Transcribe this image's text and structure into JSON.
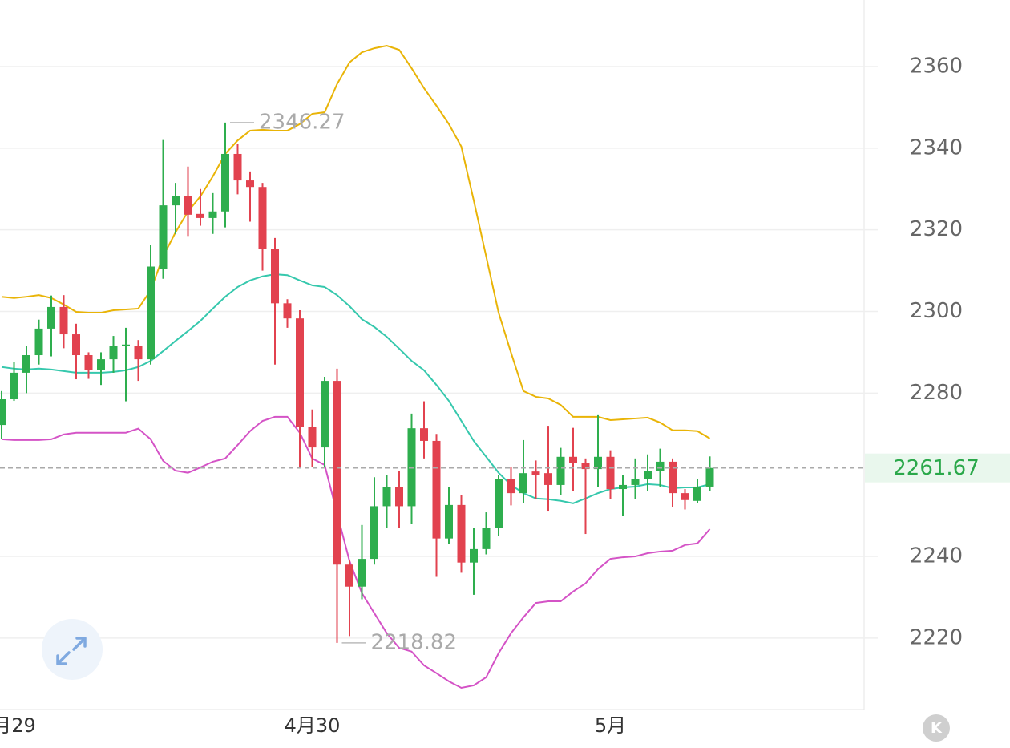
{
  "chart_data": {
    "type": "candlestick",
    "categories": [
      null,
      "月29",
      null,
      null,
      null,
      null,
      null,
      null,
      null,
      null,
      null,
      null,
      null,
      null,
      null,
      null,
      null,
      null,
      null,
      null,
      null,
      null,
      null,
      null,
      null,
      "4月30",
      null,
      null,
      null,
      null,
      null,
      null,
      null,
      null,
      null,
      null,
      null,
      null,
      null,
      null,
      null,
      null,
      null,
      null,
      null,
      null,
      null,
      null,
      null,
      "5月",
      null,
      null,
      null,
      null,
      null,
      null,
      null,
      null
    ],
    "open": [
      2272.2,
      2278.5,
      2285,
      2289.3,
      2295.8,
      2301.1,
      2294.4,
      2289.3,
      2285.6,
      2288.3,
      2291.5,
      2291.5,
      2288.3,
      2310.5,
      2326,
      2328.2,
      2323.9,
      2322.9,
      2324.5,
      2338.6,
      2332.1,
      2330.5,
      2315.4,
      2302,
      2298.3,
      2271.8,
      2266.7,
      2283,
      2238,
      2232.6,
      2239.4,
      2252.3,
      2257,
      2252.3,
      2271.4,
      2268.3,
      2244.4,
      2252.6,
      2238.5,
      2241.8,
      2247,
      2259,
      2255.5,
      2260.8,
      2260.4,
      2257.5,
      2264.4,
      2262.8,
      2261.4,
      2264.4,
      2256.5,
      2257.5,
      2258.9,
      2260.9,
      2263.2,
      2255.5,
      2253.6,
      2257.1
    ],
    "high": [
      2280.5,
      2287.6,
      2291.5,
      2298,
      2303.9,
      2304,
      2297,
      2290,
      2290,
      2294,
      2296,
      2293,
      2316.4,
      2342,
      2331.5,
      2335.5,
      2330,
      2329,
      2346.27,
      2341,
      2334.3,
      2331.5,
      2318,
      2303,
      2300.3,
      2276,
      2284,
      2286,
      2239,
      2247.7,
      2259.4,
      2260,
      2261,
      2275,
      2278,
      2270,
      2257,
      2255,
      2247,
      2250.8,
      2260,
      2262,
      2268.5,
      2263.5,
      2272,
      2266.6,
      2271.5,
      2264,
      2274.6,
      2266,
      2260,
      2264,
      2265,
      2266.4,
      2264,
      2256.5,
      2259,
      2264.5
    ],
    "low": [
      2268.7,
      2278.1,
      2280,
      2287,
      2289,
      2291,
      2283.4,
      2283.5,
      2282,
      2285,
      2278,
      2283,
      2287,
      2308,
      2319,
      2318.5,
      2321,
      2319,
      2320.6,
      2328.7,
      2322,
      2310,
      2287,
      2296,
      2262,
      2262,
      2262,
      2218.82,
      2220.5,
      2229.5,
      2238,
      2247,
      2247,
      2248,
      2264,
      2235,
      2243,
      2236,
      2230.6,
      2240.5,
      2245,
      2252.5,
      2253,
      2254,
      2251,
      2255,
      2256,
      2245.5,
      2257,
      2254,
      2250,
      2254,
      2256,
      2257,
      2252,
      2251.5,
      2253,
      2256
    ],
    "close": [
      2278.5,
      2285,
      2289.3,
      2295.8,
      2301.1,
      2294.4,
      2289.3,
      2285.6,
      2288.3,
      2291.5,
      2291.9,
      2288.3,
      2311,
      2326,
      2328.2,
      2323.7,
      2322.9,
      2324.5,
      2338.6,
      2332.1,
      2330.5,
      2315.4,
      2302,
      2298.3,
      2271.8,
      2266.7,
      2283,
      2238,
      2232.6,
      2239.4,
      2252.3,
      2257,
      2252.3,
      2271.4,
      2268.3,
      2244.4,
      2252.6,
      2238.5,
      2241.8,
      2247,
      2259,
      2255.5,
      2260.4,
      2260,
      2257.5,
      2264.4,
      2262.8,
      2261.4,
      2264.4,
      2256.5,
      2257.5,
      2258.9,
      2260.9,
      2263.2,
      2255.5,
      2253.8,
      2257.1,
      2261.67
    ],
    "up_color": "#2eae4e",
    "down_color": "#e2424f",
    "bands": [
      {
        "color": "#e9b407",
        "values": [
          2303.6,
          2303.3,
          2303.6,
          2304.0,
          2303.3,
          2301.7,
          2299.9,
          2299.7,
          2299.7,
          2300.3,
          2300.5,
          2300.7,
          2305.2,
          2313.5,
          2319.4,
          2324.5,
          2328.2,
          2333.1,
          2338.6,
          2341.9,
          2344.3,
          2344.5,
          2344.3,
          2344.3,
          2345.9,
          2348.4,
          2348.8,
          2355.7,
          2361.0,
          2363.5,
          2364.5,
          2365.1,
          2364.1,
          2359.6,
          2354.7,
          2350.4,
          2345.9,
          2340.4,
          2327.2,
          2313.5,
          2299.7,
          2289.9,
          2280.5,
          2279.1,
          2278.7,
          2277.1,
          2274.2,
          2274.2,
          2274.2,
          2273.4,
          2273.6,
          2273.8,
          2274.0,
          2272.8,
          2270.9,
          2270.9,
          2270.7,
          2268.9
        ]
      },
      {
        "color": "#36c8ad",
        "values": [
          2286.4,
          2286.0,
          2285.8,
          2286.0,
          2285.8,
          2285.4,
          2285.0,
          2285.0,
          2285.0,
          2285.2,
          2285.6,
          2286.4,
          2287.9,
          2290.3,
          2292.8,
          2295.2,
          2297.7,
          2300.7,
          2303.6,
          2306.0,
          2307.6,
          2308.6,
          2309.1,
          2308.9,
          2307.6,
          2306.4,
          2306.0,
          2304.0,
          2301.3,
          2298.1,
          2296.2,
          2293.8,
          2290.9,
          2287.9,
          2285.6,
          2282.0,
          2278.1,
          2273.2,
          2268.3,
          2264.4,
          2260.5,
          2257.5,
          2255.5,
          2254.2,
          2254.0,
          2253.6,
          2253.0,
          2254.2,
          2255.5,
          2256.5,
          2256.9,
          2257.1,
          2257.7,
          2257.5,
          2256.7,
          2256.9,
          2256.9,
          2257.7
        ]
      },
      {
        "color": "#d453c6",
        "values": [
          2268.7,
          2268.5,
          2268.5,
          2268.5,
          2268.7,
          2269.9,
          2270.3,
          2270.3,
          2270.3,
          2270.3,
          2270.3,
          2271.3,
          2268.7,
          2263.4,
          2261.0,
          2260.5,
          2261.8,
          2263.2,
          2264.0,
          2267.3,
          2270.7,
          2273.2,
          2274.2,
          2274.2,
          2270.3,
          2264.0,
          2262.4,
          2250.6,
          2238.9,
          2231.0,
          2226.1,
          2221.2,
          2217.6,
          2216.7,
          2213.3,
          2211.4,
          2209.4,
          2207.8,
          2208.4,
          2210.4,
          2216.3,
          2221.2,
          2225.1,
          2228.6,
          2229.0,
          2229.0,
          2231.4,
          2233.4,
          2236.9,
          2239.4,
          2239.8,
          2240.0,
          2240.8,
          2241.2,
          2241.4,
          2242.8,
          2243.2,
          2246.7
        ]
      }
    ],
    "ylim": [
      2202.5,
      2376.3
    ],
    "yticks": [
      2220,
      2240,
      2280,
      2300,
      2320,
      2340,
      2360
    ],
    "grid": true
  },
  "mode_button": "K"
}
